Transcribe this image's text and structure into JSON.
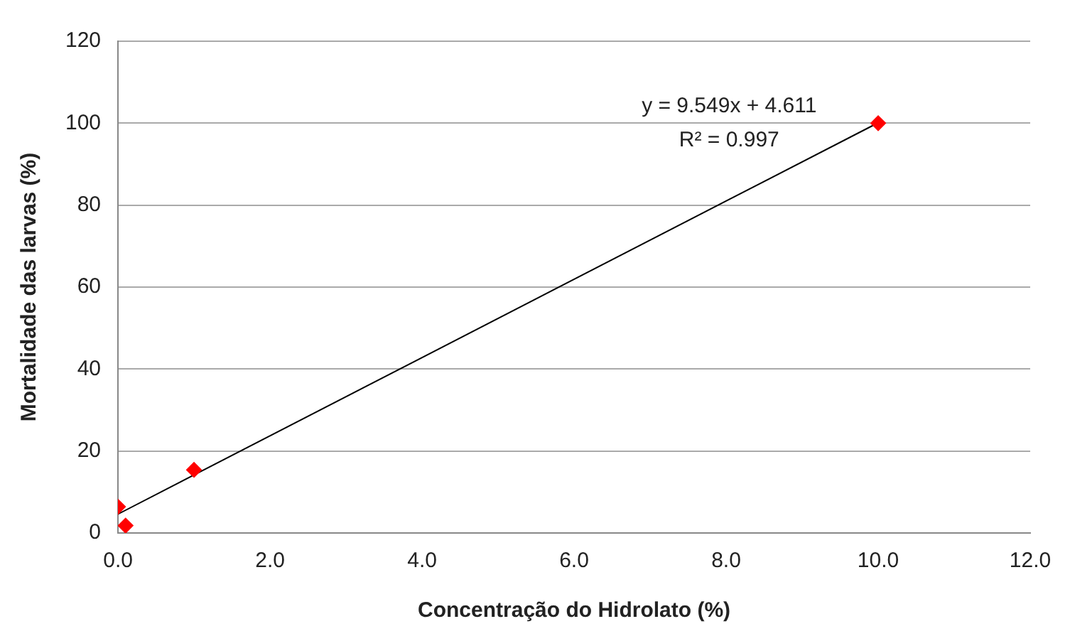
{
  "chart_data": {
    "type": "scatter",
    "xlabel": "Concentração do Hidrolato (%)",
    "ylabel": "Mortalidade das larvas (%)",
    "series": [
      {
        "color": "#ff0000",
        "marker": "diamond",
        "x": [
          0.0,
          0.1,
          1.0,
          10.0
        ],
        "values": [
          6.4,
          1.8,
          15.4,
          100
        ]
      },
      {
        "type": "line",
        "color": "#000000",
        "marker": "none",
        "x": [
          0,
          10
        ],
        "values": [
          4.6,
          100.1
        ]
      }
    ],
    "xlim": [
      0,
      12
    ],
    "xticks": [
      {
        "value": 0,
        "label": "0.0"
      },
      {
        "value": 2,
        "label": "2.0"
      },
      {
        "value": 4,
        "label": "4.0"
      },
      {
        "value": 6,
        "label": "6.0"
      },
      {
        "value": 8,
        "label": "8.0"
      },
      {
        "value": 10,
        "label": "10.0"
      },
      {
        "value": 12,
        "label": "12.0"
      }
    ],
    "ylim": [
      0,
      120
    ],
    "yticks": [
      0,
      20,
      40,
      60,
      80,
      100,
      120
    ],
    "grid": "y",
    "legend": false,
    "annotations": [
      "y = 9.549x + 4.611",
      "R² = 0.997"
    ]
  }
}
